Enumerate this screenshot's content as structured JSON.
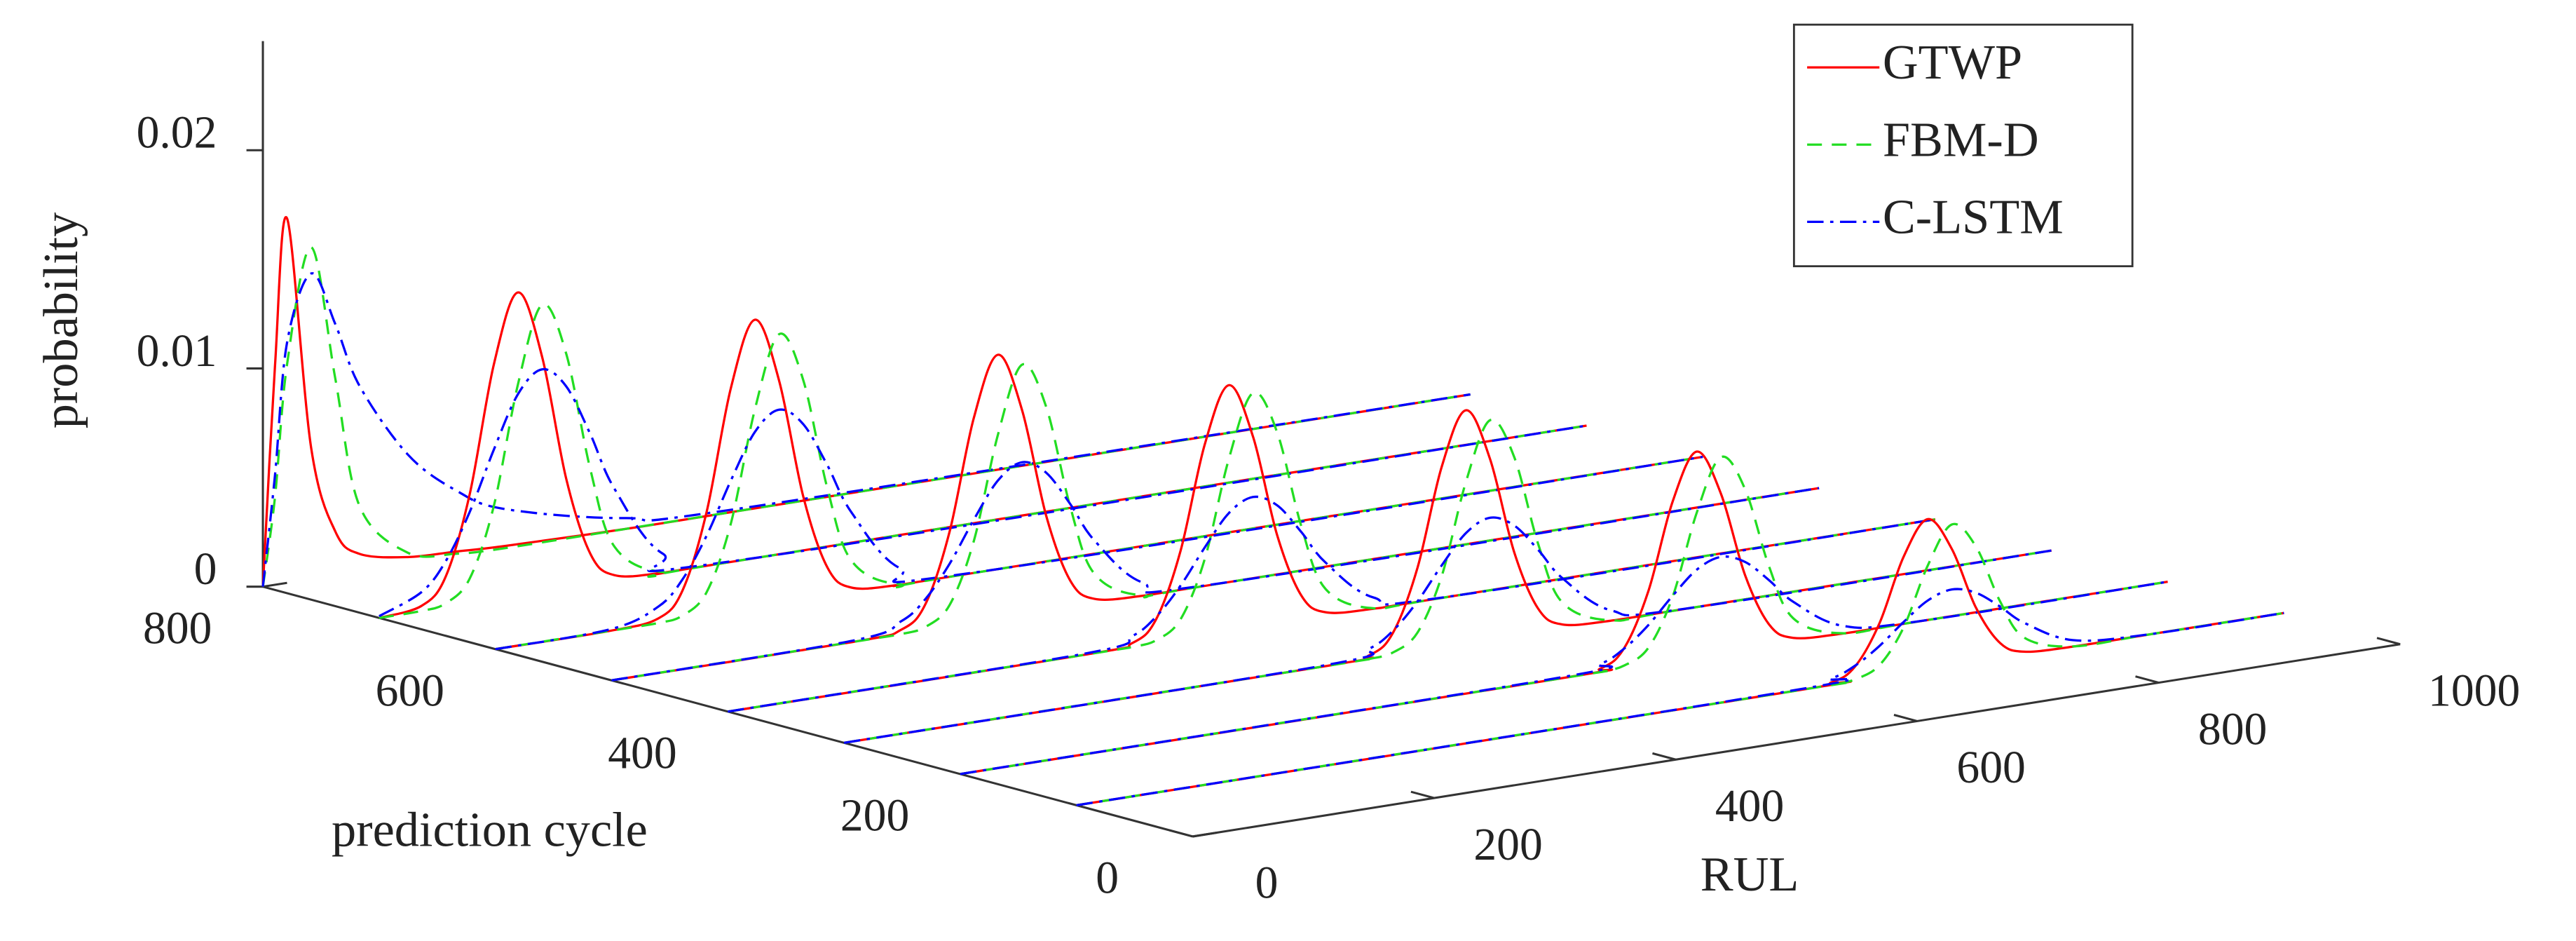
{
  "chart_data": {
    "type": "waterfall3d",
    "xlabel": "RUL",
    "ylabel": "prediction cycle",
    "zlabel": "probability",
    "xlim": [
      0,
      1000
    ],
    "xticks": [
      0,
      200,
      400,
      600,
      800,
      1000
    ],
    "ylim": [
      0,
      800
    ],
    "yticks": [
      0,
      200,
      400,
      600,
      800
    ],
    "zlim": [
      0,
      0.025
    ],
    "zticks": [
      0,
      0.01,
      0.02
    ],
    "legend": "upper right",
    "slices": [
      {
        "cycle": 800,
        "rul": [
          0,
          10,
          20,
          40,
          60,
          80,
          120,
          160,
          200,
          300,
          400,
          1000
        ]
      },
      {
        "cycle": 700,
        "rul": [
          0,
          35,
          55,
          75,
          95,
          115,
          135,
          155,
          175,
          195,
          235,
          295,
          1000
        ]
      },
      {
        "cycle": 600,
        "rul": [
          0,
          95,
          135,
          155,
          175,
          195,
          215,
          235,
          255,
          275,
          295,
          335,
          395,
          1000
        ]
      },
      {
        "cycle": 500,
        "rul": [
          0,
          200,
          240,
          260,
          280,
          300,
          320,
          340,
          360,
          380,
          400,
          440,
          500,
          1000
        ]
      },
      {
        "cycle": 400,
        "rul": [
          0,
          295,
          335,
          355,
          375,
          395,
          415,
          435,
          455,
          475,
          495,
          535,
          595,
          1000
        ]
      },
      {
        "cycle": 300,
        "rul": [
          0,
          395,
          435,
          455,
          475,
          495,
          515,
          535,
          555,
          575,
          595,
          635,
          695,
          1000
        ]
      },
      {
        "cycle": 200,
        "rul": [
          0,
          490,
          530,
          550,
          570,
          590,
          610,
          630,
          650,
          670,
          690,
          730,
          790,
          1000
        ]
      },
      {
        "cycle": 100,
        "rul": [
          0,
          585,
          625,
          645,
          665,
          685,
          705,
          725,
          745,
          765,
          785,
          825,
          885,
          1000
        ]
      }
    ],
    "series": [
      {
        "name": "GTWP",
        "color": "#ff0000",
        "dash": "none",
        "values": [
          [
            0,
            0.01,
            0.0167,
            0.006,
            0.002,
            0.0008,
            0.0003,
            0.0002,
            0.0001,
            0,
            0,
            0
          ],
          [
            0,
            0.00024,
            0.00139,
            0.005,
            0.01077,
            0.0139,
            0.01077,
            0.005,
            0.00139,
            0.00024,
            0,
            0,
            0
          ],
          [
            0,
            0,
            0.00022,
            0.00132,
            0.00475,
            0.01023,
            0.0132,
            0.01023,
            0.00475,
            0.00132,
            0.00022,
            0,
            0,
            0
          ],
          [
            0,
            0,
            0.00021,
            0.00121,
            0.00436,
            0.00938,
            0.0121,
            0.00938,
            0.00436,
            0.00121,
            0.00021,
            0,
            0,
            0
          ],
          [
            0,
            0,
            0.00019,
            0.00113,
            0.00407,
            0.00876,
            0.0113,
            0.00876,
            0.00407,
            0.00113,
            0.00019,
            0,
            0,
            0
          ],
          [
            0,
            0,
            0.00018,
            0.00107,
            0.00385,
            0.00829,
            0.0107,
            0.00829,
            0.00385,
            0.00107,
            0.00018,
            0,
            0,
            0
          ],
          [
            0,
            0,
            0.00016,
            0.00094,
            0.00338,
            0.00729,
            0.0094,
            0.00729,
            0.00338,
            0.00094,
            0.00016,
            0,
            0,
            0
          ],
          [
            0,
            0,
            0.00012,
            0.00069,
            0.00248,
            0.00535,
            0.0069,
            0.00535,
            0.00248,
            0.00069,
            0.00012,
            0,
            0,
            0
          ]
        ]
      },
      {
        "name": "FBM-D",
        "color": "#22dd22",
        "dash": "9,6",
        "values": [
          [
            0,
            0.004,
            0.01,
            0.0152,
            0.009,
            0.003,
            0.0005,
            0.0001,
            0,
            0,
            0,
            0
          ],
          [
            0,
            1e-05,
            0.00018,
            0.00114,
            0.00429,
            0.00969,
            0.01316,
            0.01073,
            0.00525,
            0.00154,
            3e-05,
            0,
            0
          ],
          [
            0,
            0,
            1e-05,
            0.00017,
            0.00107,
            0.00403,
            0.0091,
            0.01236,
            0.01008,
            0.00494,
            0.00145,
            2e-05,
            0,
            0
          ],
          [
            0,
            0,
            1e-05,
            0.00016,
            0.00099,
            0.00374,
            0.00844,
            0.01147,
            0.00935,
            0.00458,
            0.00135,
            2e-05,
            0,
            0
          ],
          [
            0,
            0,
            1e-05,
            0.00015,
            0.00093,
            0.00351,
            0.00793,
            0.01077,
            0.00878,
            0.0043,
            0.00126,
            2e-05,
            0,
            0
          ],
          [
            0,
            0,
            1e-05,
            0.00014,
            0.00087,
            0.00328,
            0.00741,
            0.01007,
            0.00821,
            0.00402,
            0.00118,
            2e-05,
            0,
            0
          ],
          [
            0,
            0,
            1e-05,
            0.00013,
            0.00077,
            0.00293,
            0.00661,
            0.00897,
            0.00732,
            0.00358,
            0.00105,
            2e-05,
            0,
            0
          ],
          [
            0,
            0,
            0,
            9e-05,
            0.00056,
            0.00211,
            0.00477,
            0.00648,
            0.00528,
            0.00259,
            0.00076,
            1e-05,
            0,
            0
          ]
        ]
      },
      {
        "name": "C-LSTM",
        "color": "#0000ff",
        "dash": "10,4,2,4",
        "values": [
          [
            0,
            0.005,
            0.011,
            0.014,
            0.0115,
            0.0085,
            0.005,
            0.003,
            0.0018,
            0.0005,
            0.0001,
            0
          ],
          [
            8e-05,
            0.00087,
            0.0021,
            0.00419,
            0.00687,
            0.00924,
            0.0102,
            0.00924,
            0.00687,
            0.00419,
            0.00087,
            2e-05,
            0
          ],
          [
            0,
            7e-05,
            0.00076,
            0.00183,
            0.00366,
            0.006,
            0.00806,
            0.0089,
            0.00806,
            0.006,
            0.00366,
            0.00076,
            2e-05,
            0
          ],
          [
            0,
            6e-05,
            0.0006,
            0.00144,
            0.00288,
            0.00472,
            0.00634,
            0.007,
            0.00634,
            0.00472,
            0.00288,
            0.0006,
            1e-05,
            0
          ],
          [
            0,
            5e-05,
            0.00051,
            0.00124,
            0.00247,
            0.00404,
            0.00544,
            0.006,
            0.00544,
            0.00404,
            0.00247,
            0.00051,
            1e-05,
            0
          ],
          [
            0,
            4e-05,
            0.00048,
            0.00115,
            0.0023,
            0.00377,
            0.00507,
            0.0056,
            0.00507,
            0.00377,
            0.0023,
            0.00048,
            1e-05,
            0
          ],
          [
            0,
            4e-05,
            0.00037,
            0.00091,
            0.00181,
            0.00297,
            0.00399,
            0.0044,
            0.00399,
            0.00297,
            0.00181,
            0.00037,
            1e-05,
            0
          ],
          [
            0,
            3e-05,
            0.0003,
            0.00072,
            0.00144,
            0.00236,
            0.00317,
            0.0035,
            0.00317,
            0.00236,
            0.00144,
            0.0003,
            1e-05,
            0
          ]
        ]
      }
    ]
  }
}
